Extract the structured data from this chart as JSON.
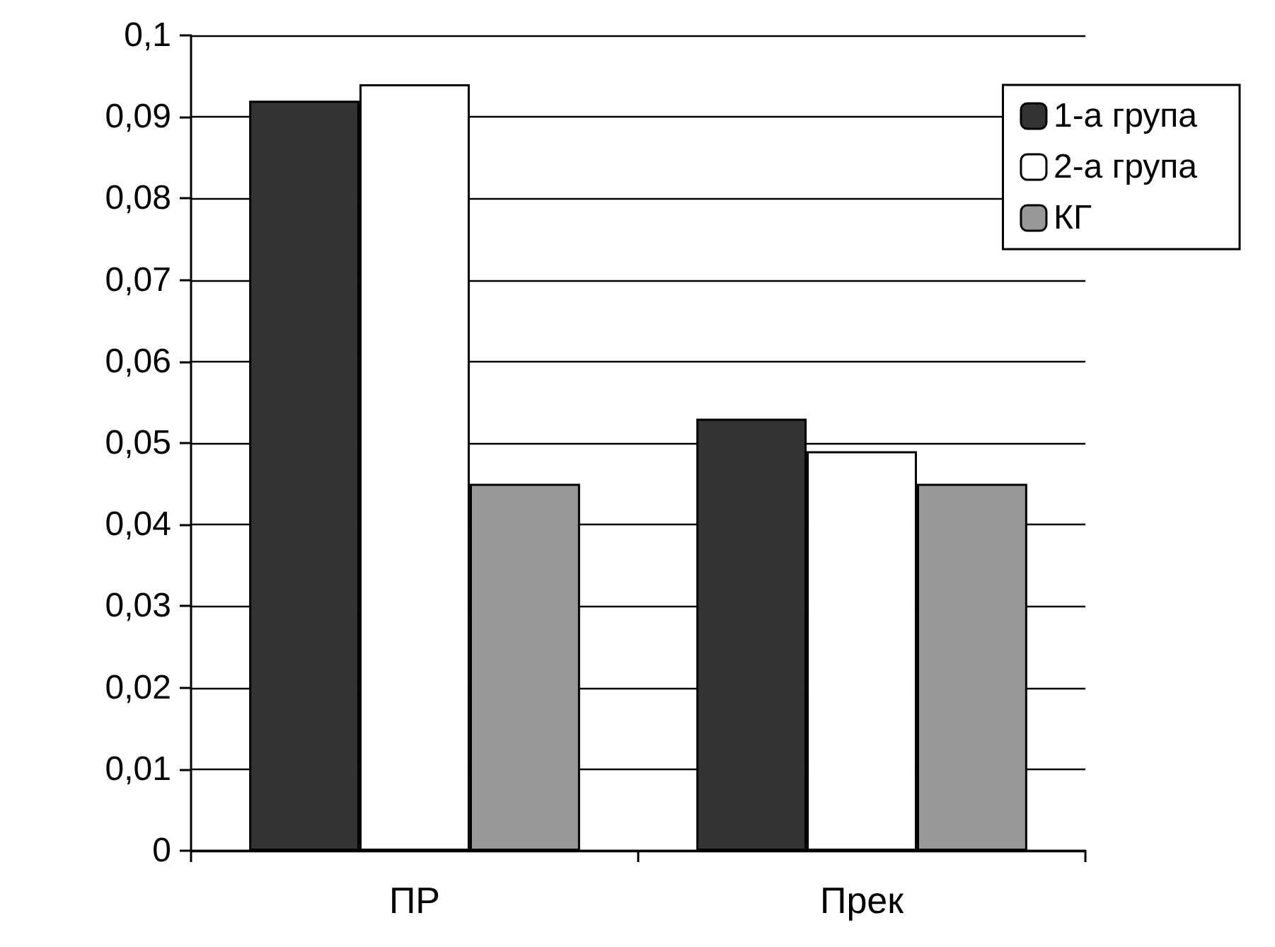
{
  "chart_data": {
    "type": "bar",
    "categories": [
      "ПР",
      "Прек"
    ],
    "series": [
      {
        "name": "1-а група",
        "color": "#333333",
        "values": [
          0.092,
          0.053
        ]
      },
      {
        "name": "2-а група",
        "color": "#ffffff",
        "values": [
          0.094,
          0.049
        ]
      },
      {
        "name": "КГ",
        "color": "#999999",
        "values": [
          0.045,
          0.045
        ]
      }
    ],
    "ylim": [
      0,
      0.1
    ],
    "yticks": [
      0,
      {
        "value": 0.01,
        "label": "0,01"
      },
      {
        "value": 0.02,
        "label": "0,02"
      },
      {
        "value": 0.03,
        "label": "0,03"
      },
      {
        "value": 0.04,
        "label": "0,04"
      },
      {
        "value": 0.05,
        "label": "0,05"
      },
      {
        "value": 0.06,
        "label": "0,06"
      },
      {
        "value": 0.07,
        "label": "0,07"
      },
      {
        "value": 0.08,
        "label": "0,08"
      },
      {
        "value": 0.09,
        "label": "0,09"
      },
      {
        "value": 0.1,
        "label": "0,1"
      }
    ],
    "grid": "y",
    "legend": "top right"
  }
}
